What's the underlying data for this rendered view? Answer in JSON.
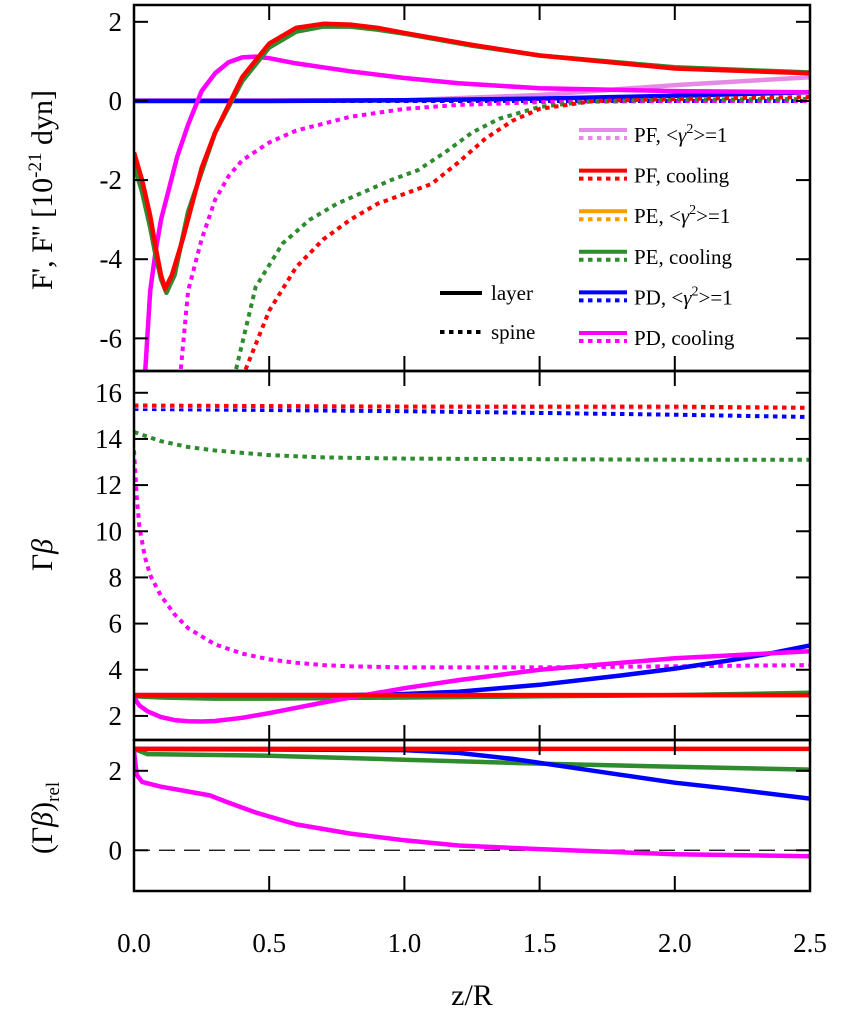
{
  "colors": {
    "PF_gamma1": "#e58ae5",
    "PF_cooling": "#ff0000",
    "PE_gamma1": "#ff9a00",
    "PE_cooling": "#2e8b2e",
    "PD_gamma1": "#0000ff",
    "PD_cooling": "#ff00ff",
    "axes": "#000000"
  },
  "chart_data": [
    {
      "id": "top",
      "type": "line",
      "ylabel": "F', F'' [10^-21 dyn]",
      "ylabel_parts": {
        "pre": "F', F'' [10",
        "sup": "-21",
        "post": " dyn]"
      },
      "xlim": [
        0,
        2.5
      ],
      "ylim": [
        -6.8,
        2.4
      ],
      "yticks": [
        -6,
        -4,
        -2,
        0,
        2
      ],
      "yticklabels": [
        "-6",
        "-4",
        "-2",
        "0",
        "2"
      ],
      "legend_style": [
        {
          "label": "layer",
          "style": "solid"
        },
        {
          "label": "spine",
          "style": "dotted"
        }
      ],
      "legend_series": [
        {
          "key": "PF_gamma1",
          "prefix": "PF, <",
          "gamma": "γ",
          "sup": "2",
          "suffix": ">=1"
        },
        {
          "key": "PF_cooling",
          "label": "PF, cooling"
        },
        {
          "key": "PE_gamma1",
          "prefix": "PE, <",
          "gamma": "γ",
          "sup": "2",
          "suffix": ">=1"
        },
        {
          "key": "PE_cooling",
          "label": "PE, cooling"
        },
        {
          "key": "PD_gamma1",
          "prefix": "PD, <",
          "gamma": "γ",
          "sup": "2",
          "suffix": ">=1"
        },
        {
          "key": "PD_cooling",
          "label": "PD, cooling"
        }
      ],
      "series": [
        {
          "name": "PF_gamma1 layer",
          "color": "PF_gamma1",
          "style": "solid",
          "x": [
            0,
            0.5,
            1.0,
            1.5,
            2.0,
            2.5
          ],
          "y": [
            0.02,
            0.02,
            0.02,
            0.15,
            0.4,
            0.6
          ]
        },
        {
          "name": "PF_gamma1 spine",
          "color": "PF_gamma1",
          "style": "dotted",
          "x": [
            0,
            0.5,
            1.0,
            1.5,
            2.0,
            2.5
          ],
          "y": [
            0.0,
            0.0,
            0.0,
            0.0,
            0.0,
            0.0
          ]
        },
        {
          "name": "PD_gamma1 layer",
          "color": "PD_gamma1",
          "style": "solid",
          "x": [
            0,
            0.5,
            1.0,
            1.5,
            2.0,
            2.5
          ],
          "y": [
            0.0,
            0.0,
            0.02,
            0.06,
            0.13,
            0.22
          ]
        },
        {
          "name": "PD_gamma1 spine",
          "color": "PD_gamma1",
          "style": "dotted",
          "x": [
            0,
            1.0,
            2.0,
            2.5
          ],
          "y": [
            0.0,
            0.0,
            0.0,
            0.0
          ]
        },
        {
          "name": "PD_cooling spine",
          "color": "PD_cooling",
          "style": "dotted",
          "x": [
            0.17,
            0.2,
            0.25,
            0.3,
            0.35,
            0.4,
            0.5,
            0.6,
            0.8,
            1.0,
            1.2,
            1.5,
            2.0,
            2.5
          ],
          "y": [
            -7.0,
            -4.8,
            -3.5,
            -2.5,
            -1.9,
            -1.5,
            -1.05,
            -0.75,
            -0.4,
            -0.2,
            -0.1,
            -0.03,
            0.0,
            0.0
          ]
        },
        {
          "name": "PE_cooling spine",
          "color": "PE_cooling",
          "style": "dotted",
          "x": [
            0.37,
            0.45,
            0.55,
            0.65,
            0.75,
            0.85,
            0.95,
            1.05,
            1.15,
            1.25,
            1.35,
            1.5,
            1.7,
            2.0,
            2.5
          ],
          "y": [
            -7.0,
            -4.7,
            -3.6,
            -3.0,
            -2.6,
            -2.3,
            -2.0,
            -1.75,
            -1.3,
            -0.8,
            -0.45,
            -0.15,
            0.0,
            0.03,
            0.05
          ]
        },
        {
          "name": "PF_cooling spine",
          "color": "PF_cooling",
          "style": "dotted",
          "x": [
            0.4,
            0.5,
            0.6,
            0.7,
            0.8,
            0.9,
            1.0,
            1.1,
            1.2,
            1.3,
            1.4,
            1.5,
            1.7,
            2.0,
            2.5
          ],
          "y": [
            -7.0,
            -5.3,
            -4.2,
            -3.5,
            -3.0,
            -2.6,
            -2.35,
            -2.1,
            -1.55,
            -0.95,
            -0.5,
            -0.2,
            0.0,
            0.05,
            0.1
          ]
        },
        {
          "name": "PD_cooling layer",
          "color": "PD_cooling",
          "style": "solid",
          "x": [
            0.04,
            0.06,
            0.08,
            0.1,
            0.13,
            0.16,
            0.2,
            0.25,
            0.3,
            0.35,
            0.4,
            0.45,
            0.5,
            0.6,
            0.8,
            1.0,
            1.2,
            1.5,
            2.0,
            2.5
          ],
          "y": [
            -7.0,
            -4.8,
            -3.8,
            -3.0,
            -2.2,
            -1.4,
            -0.6,
            0.25,
            0.7,
            0.98,
            1.1,
            1.12,
            1.08,
            0.95,
            0.75,
            0.58,
            0.45,
            0.32,
            0.25,
            0.22
          ]
        },
        {
          "name": "PE_cooling layer",
          "color": "PE_cooling",
          "style": "solid",
          "x": [
            0,
            0.03,
            0.06,
            0.08,
            0.1,
            0.12,
            0.15,
            0.2,
            0.3,
            0.4,
            0.5,
            0.6,
            0.7,
            0.8,
            0.9,
            1.0,
            1.25,
            1.5,
            2.0,
            2.5
          ],
          "y": [
            -1.6,
            -2.3,
            -3.2,
            -3.9,
            -4.5,
            -4.85,
            -4.4,
            -2.8,
            -0.8,
            0.5,
            1.35,
            1.75,
            1.88,
            1.88,
            1.8,
            1.7,
            1.4,
            1.15,
            0.85,
            0.72
          ]
        },
        {
          "name": "PF_cooling layer",
          "color": "PF_cooling",
          "style": "solid",
          "x": [
            0,
            0.03,
            0.06,
            0.08,
            0.1,
            0.115,
            0.14,
            0.18,
            0.25,
            0.3,
            0.4,
            0.5,
            0.6,
            0.7,
            0.8,
            0.9,
            1.0,
            1.25,
            1.5,
            2.0,
            2.5
          ],
          "y": [
            -1.3,
            -2.0,
            -2.9,
            -3.7,
            -4.4,
            -4.75,
            -4.4,
            -3.5,
            -1.7,
            -0.8,
            0.6,
            1.45,
            1.85,
            1.95,
            1.93,
            1.85,
            1.72,
            1.42,
            1.15,
            0.82,
            0.7
          ]
        }
      ]
    },
    {
      "id": "mid",
      "type": "line",
      "ylabel": "Γβ",
      "ylabel_parts": {
        "pre": "Γ",
        "italic": "β"
      },
      "xlim": [
        0,
        2.5
      ],
      "ylim": [
        1.0,
        16.9
      ],
      "yticks": [
        2,
        4,
        6,
        8,
        10,
        12,
        14,
        16
      ],
      "yticklabels": [
        "2",
        "4",
        "6",
        "8",
        "10",
        "12",
        "14",
        "16"
      ],
      "series": [
        {
          "name": "PD_gamma1 spine",
          "color": "PD_gamma1",
          "style": "dotted",
          "x": [
            0,
            1.0,
            2.0,
            2.5
          ],
          "y": [
            15.3,
            15.2,
            15.05,
            14.95
          ]
        },
        {
          "name": "PF_gamma1 spine",
          "color": "PF_gamma1",
          "style": "dotted",
          "x": [
            0,
            1.0,
            2.0,
            2.5
          ],
          "y": [
            15.4,
            15.4,
            15.35,
            15.35
          ]
        },
        {
          "name": "PF_cooling spine",
          "color": "PF_cooling",
          "style": "dotted",
          "x": [
            0,
            1.0,
            2.0,
            2.5
          ],
          "y": [
            15.45,
            15.4,
            15.4,
            15.35
          ]
        },
        {
          "name": "PE_cooling spine",
          "color": "PE_cooling",
          "style": "dotted",
          "x": [
            0,
            0.05,
            0.1,
            0.2,
            0.3,
            0.5,
            0.7,
            1.0,
            1.5,
            2.0,
            2.5
          ],
          "y": [
            14.3,
            14.1,
            13.9,
            13.65,
            13.5,
            13.3,
            13.2,
            13.15,
            13.12,
            13.1,
            13.1
          ]
        },
        {
          "name": "PD_cooling spine",
          "color": "PD_cooling",
          "style": "dotted",
          "x": [
            0,
            0.01,
            0.02,
            0.04,
            0.06,
            0.1,
            0.15,
            0.2,
            0.3,
            0.4,
            0.5,
            0.6,
            0.7,
            0.8,
            1.0,
            1.2,
            1.5,
            2.0,
            2.5
          ],
          "y": [
            13.5,
            11.5,
            10.2,
            8.9,
            8.1,
            7.2,
            6.4,
            5.8,
            5.1,
            4.7,
            4.45,
            4.3,
            4.2,
            4.15,
            4.1,
            4.1,
            4.1,
            4.15,
            4.2
          ]
        },
        {
          "name": "PE_gamma1 layer",
          "color": "PE_gamma1",
          "style": "solid",
          "x": [
            0,
            2.5
          ],
          "y": [
            2.9,
            2.9
          ]
        },
        {
          "name": "PE_cooling layer",
          "color": "PE_cooling",
          "style": "solid",
          "x": [
            0,
            0.1,
            0.3,
            0.5,
            1.0,
            1.5,
            2.0,
            2.5
          ],
          "y": [
            2.85,
            2.8,
            2.75,
            2.75,
            2.8,
            2.85,
            2.9,
            3.0
          ]
        },
        {
          "name": "PD_gamma1 layer",
          "color": "PD_gamma1",
          "style": "solid",
          "x": [
            0,
            0.8,
            1.0,
            1.2,
            1.5,
            1.8,
            2.0,
            2.2,
            2.35,
            2.5
          ],
          "y": [
            2.9,
            2.9,
            2.95,
            3.05,
            3.35,
            3.75,
            4.05,
            4.4,
            4.7,
            5.05
          ]
        },
        {
          "name": "PD_cooling layer",
          "color": "PD_cooling",
          "style": "solid",
          "x": [
            0,
            0.02,
            0.05,
            0.1,
            0.15,
            0.2,
            0.25,
            0.3,
            0.4,
            0.5,
            0.6,
            0.7,
            0.8,
            1.0,
            1.2,
            1.5,
            2.0,
            2.5
          ],
          "y": [
            2.8,
            2.45,
            2.2,
            1.95,
            1.82,
            1.77,
            1.76,
            1.78,
            1.92,
            2.12,
            2.35,
            2.58,
            2.8,
            3.2,
            3.55,
            4.0,
            4.5,
            4.8
          ]
        },
        {
          "name": "PF_cooling layer",
          "color": "PF_cooling",
          "style": "solid",
          "x": [
            0,
            2.5
          ],
          "y": [
            2.9,
            2.9
          ]
        }
      ]
    },
    {
      "id": "bot",
      "type": "line",
      "ylabel": "(Γβ)rel",
      "ylabel_parts": {
        "pre": "(Γ",
        "italic": "β",
        "post": ")",
        "sub": "rel"
      },
      "xlabel": "z/R",
      "xlim": [
        0,
        2.5
      ],
      "ylim": [
        -1.0,
        2.75
      ],
      "yticks": [
        0,
        2
      ],
      "yticklabels": [
        "0",
        "2"
      ],
      "xticks": [
        0,
        0.5,
        1.0,
        1.5,
        2.0,
        2.5
      ],
      "xticklabels": [
        "0.0",
        "0.5",
        "1.0",
        "1.5",
        "2.0",
        "2.5"
      ],
      "reference_line": {
        "y": 0,
        "style": "dashed"
      },
      "series": [
        {
          "name": "PE_cooling layer",
          "color": "PE_cooling",
          "style": "solid",
          "x": [
            0,
            0.05,
            0.5,
            1.0,
            1.5,
            2.0,
            2.5
          ],
          "y": [
            2.55,
            2.42,
            2.38,
            2.28,
            2.18,
            2.1,
            2.03
          ]
        },
        {
          "name": "PD_gamma1 layer",
          "color": "PD_gamma1",
          "style": "solid",
          "x": [
            0,
            1.0,
            1.2,
            1.4,
            1.6,
            1.8,
            2.0,
            2.2,
            2.5
          ],
          "y": [
            2.55,
            2.52,
            2.45,
            2.3,
            2.1,
            1.9,
            1.7,
            1.55,
            1.3
          ]
        },
        {
          "name": "PF_cooling layer",
          "color": "PF_cooling",
          "style": "solid",
          "x": [
            0,
            2.5
          ],
          "y": [
            2.55,
            2.55
          ]
        },
        {
          "name": "PD_cooling layer",
          "color": "PD_cooling",
          "style": "solid",
          "x": [
            0,
            0.01,
            0.03,
            0.1,
            0.2,
            0.28,
            0.35,
            0.45,
            0.6,
            0.8,
            1.0,
            1.2,
            1.5,
            1.8,
            2.0,
            2.5
          ],
          "y": [
            2.5,
            1.9,
            1.72,
            1.6,
            1.48,
            1.38,
            1.2,
            0.95,
            0.65,
            0.42,
            0.25,
            0.12,
            0.03,
            -0.05,
            -0.1,
            -0.15
          ]
        }
      ]
    }
  ]
}
